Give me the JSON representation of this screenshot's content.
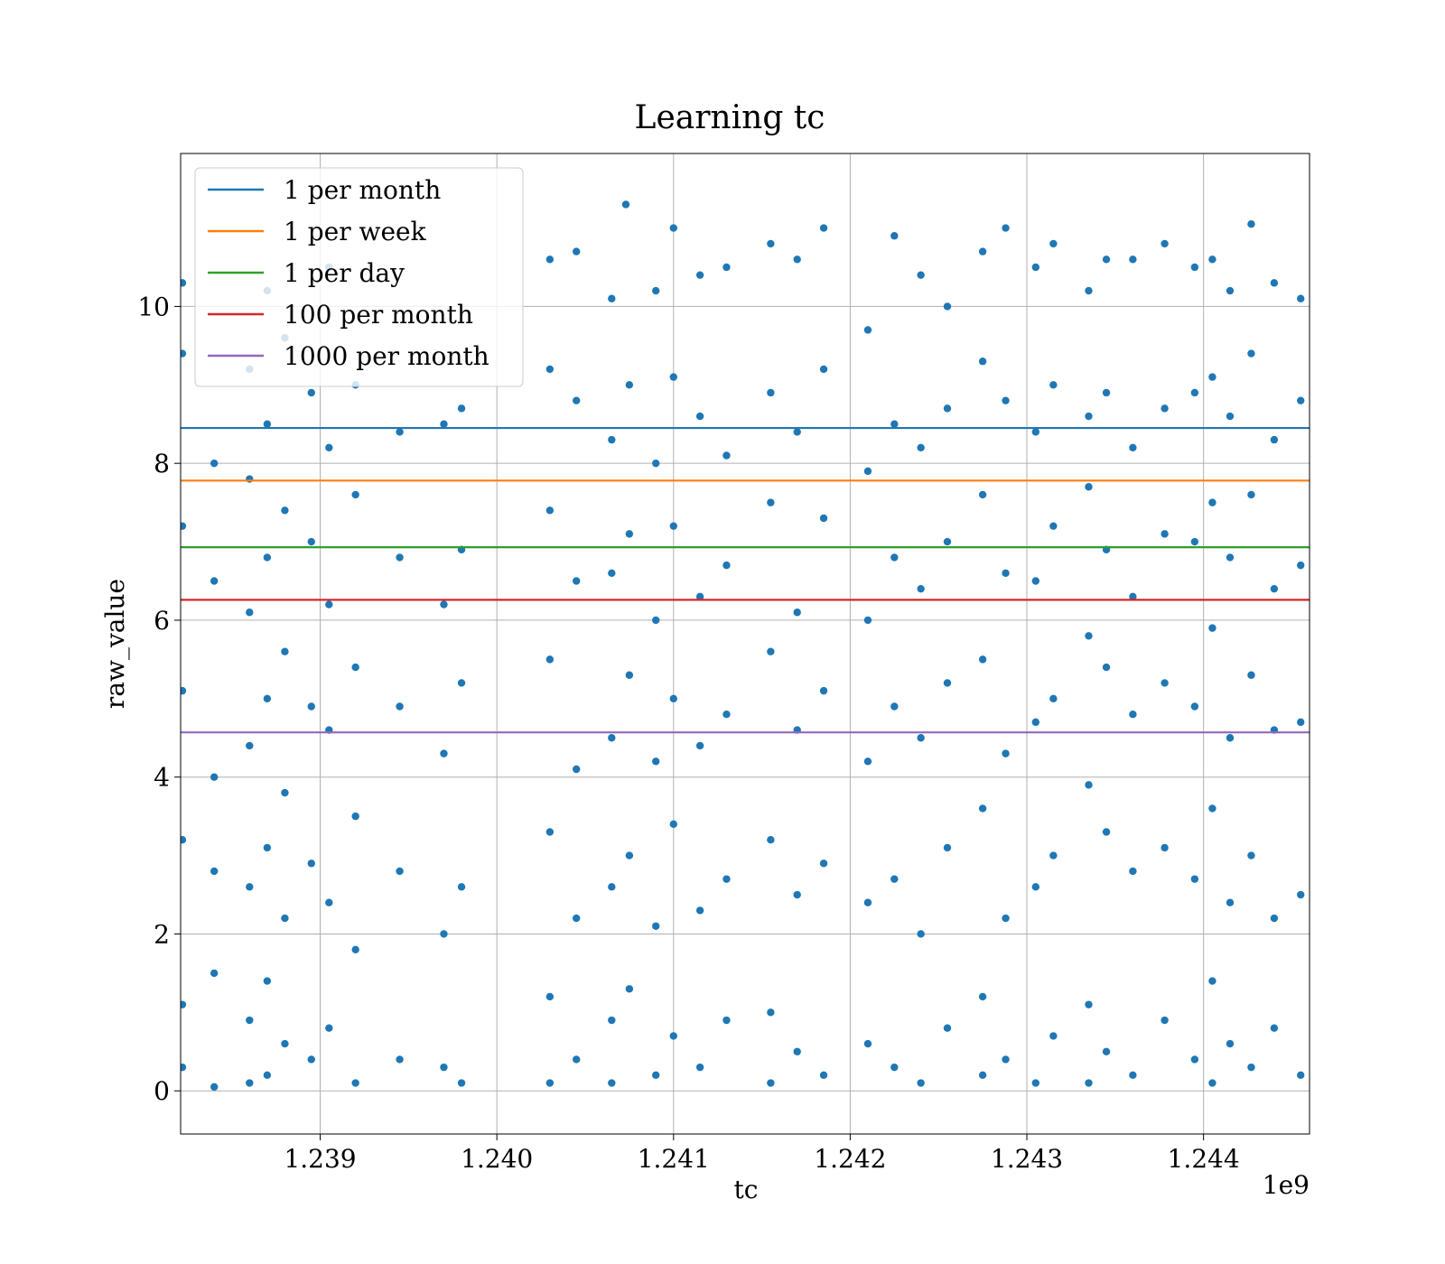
{
  "chart_data": {
    "type": "scatter",
    "title": "Learning tc",
    "xlabel": "tc",
    "ylabel": "raw_value",
    "x_offset_label": "1e9",
    "xlim": [
      1238210000,
      1244600000
    ],
    "ylim": [
      -0.55,
      11.95
    ],
    "xticks": [
      1239000000,
      1240000000,
      1241000000,
      1242000000,
      1243000000,
      1244000000
    ],
    "xtick_labels": [
      "1.239",
      "1.240",
      "1.241",
      "1.242",
      "1.243",
      "1.244"
    ],
    "yticks": [
      0,
      2,
      4,
      6,
      8,
      10
    ],
    "ytick_labels": [
      "0",
      "2",
      "4",
      "6",
      "8",
      "10"
    ],
    "grid": true,
    "legend_position": "upper-left",
    "scatter_color": "#1f77b4",
    "scatter_points": [
      [
        1238220000,
        10.3
      ],
      [
        1238220000,
        9.4
      ],
      [
        1238220000,
        7.2
      ],
      [
        1238220000,
        5.1
      ],
      [
        1238220000,
        3.2
      ],
      [
        1238220000,
        1.1
      ],
      [
        1238220000,
        0.3
      ],
      [
        1238400000,
        8.0
      ],
      [
        1238400000,
        6.5
      ],
      [
        1238400000,
        4.0
      ],
      [
        1238400000,
        2.8
      ],
      [
        1238400000,
        1.5
      ],
      [
        1238400000,
        0.05
      ],
      [
        1238600000,
        9.2
      ],
      [
        1238600000,
        7.8
      ],
      [
        1238600000,
        6.1
      ],
      [
        1238600000,
        4.4
      ],
      [
        1238600000,
        2.6
      ],
      [
        1238600000,
        0.9
      ],
      [
        1238600000,
        0.1
      ],
      [
        1238700000,
        10.2
      ],
      [
        1238700000,
        8.5
      ],
      [
        1238700000,
        6.8
      ],
      [
        1238700000,
        5.0
      ],
      [
        1238700000,
        3.1
      ],
      [
        1238700000,
        1.4
      ],
      [
        1238700000,
        0.2
      ],
      [
        1238800000,
        9.6
      ],
      [
        1238800000,
        7.4
      ],
      [
        1238800000,
        5.6
      ],
      [
        1238800000,
        3.8
      ],
      [
        1238800000,
        2.2
      ],
      [
        1238800000,
        0.6
      ],
      [
        1238950000,
        8.9
      ],
      [
        1238950000,
        7.0
      ],
      [
        1238950000,
        4.9
      ],
      [
        1238950000,
        2.9
      ],
      [
        1238950000,
        0.4
      ],
      [
        1239050000,
        10.5
      ],
      [
        1239050000,
        8.2
      ],
      [
        1239050000,
        6.2
      ],
      [
        1239050000,
        4.6
      ],
      [
        1239050000,
        2.4
      ],
      [
        1239050000,
        0.8
      ],
      [
        1239200000,
        9.0
      ],
      [
        1239200000,
        7.6
      ],
      [
        1239200000,
        5.4
      ],
      [
        1239200000,
        3.5
      ],
      [
        1239200000,
        1.8
      ],
      [
        1239200000,
        0.1
      ],
      [
        1239450000,
        8.4
      ],
      [
        1239450000,
        6.8
      ],
      [
        1239450000,
        4.9
      ],
      [
        1239450000,
        2.8
      ],
      [
        1239450000,
        0.4
      ],
      [
        1239700000,
        8.5
      ],
      [
        1239700000,
        6.2
      ],
      [
        1239700000,
        4.3
      ],
      [
        1239700000,
        2.0
      ],
      [
        1239700000,
        0.3
      ],
      [
        1239800000,
        8.7
      ],
      [
        1239800000,
        6.9
      ],
      [
        1239800000,
        5.2
      ],
      [
        1239800000,
        2.6
      ],
      [
        1239800000,
        0.1
      ],
      [
        1240300000,
        10.6
      ],
      [
        1240300000,
        9.2
      ],
      [
        1240300000,
        7.4
      ],
      [
        1240300000,
        5.5
      ],
      [
        1240300000,
        3.3
      ],
      [
        1240300000,
        1.2
      ],
      [
        1240300000,
        0.1
      ],
      [
        1240450000,
        10.7
      ],
      [
        1240450000,
        8.8
      ],
      [
        1240450000,
        6.5
      ],
      [
        1240450000,
        4.1
      ],
      [
        1240450000,
        2.2
      ],
      [
        1240450000,
        0.4
      ],
      [
        1240650000,
        10.1
      ],
      [
        1240650000,
        8.3
      ],
      [
        1240650000,
        6.6
      ],
      [
        1240650000,
        4.5
      ],
      [
        1240650000,
        2.6
      ],
      [
        1240650000,
        0.9
      ],
      [
        1240650000,
        0.1
      ],
      [
        1240730000,
        11.3
      ],
      [
        1240750000,
        9.0
      ],
      [
        1240750000,
        7.1
      ],
      [
        1240750000,
        5.3
      ],
      [
        1240750000,
        3.0
      ],
      [
        1240750000,
        1.3
      ],
      [
        1240900000,
        10.2
      ],
      [
        1240900000,
        8.0
      ],
      [
        1240900000,
        6.0
      ],
      [
        1240900000,
        4.2
      ],
      [
        1240900000,
        2.1
      ],
      [
        1240900000,
        0.2
      ],
      [
        1241000000,
        11.0
      ],
      [
        1241000000,
        9.1
      ],
      [
        1241000000,
        7.2
      ],
      [
        1241000000,
        5.0
      ],
      [
        1241000000,
        3.4
      ],
      [
        1241000000,
        0.7
      ],
      [
        1241150000,
        10.4
      ],
      [
        1241150000,
        8.6
      ],
      [
        1241150000,
        6.3
      ],
      [
        1241150000,
        4.4
      ],
      [
        1241150000,
        2.3
      ],
      [
        1241150000,
        0.3
      ],
      [
        1241300000,
        10.5
      ],
      [
        1241300000,
        8.1
      ],
      [
        1241300000,
        6.7
      ],
      [
        1241300000,
        4.8
      ],
      [
        1241300000,
        2.7
      ],
      [
        1241300000,
        0.9
      ],
      [
        1241550000,
        10.8
      ],
      [
        1241550000,
        8.9
      ],
      [
        1241550000,
        7.5
      ],
      [
        1241550000,
        5.6
      ],
      [
        1241550000,
        3.2
      ],
      [
        1241550000,
        1.0
      ],
      [
        1241550000,
        0.1
      ],
      [
        1241700000,
        10.6
      ],
      [
        1241700000,
        8.4
      ],
      [
        1241700000,
        6.1
      ],
      [
        1241700000,
        4.6
      ],
      [
        1241700000,
        2.5
      ],
      [
        1241700000,
        0.5
      ],
      [
        1241850000,
        11.0
      ],
      [
        1241850000,
        9.2
      ],
      [
        1241850000,
        7.3
      ],
      [
        1241850000,
        5.1
      ],
      [
        1241850000,
        2.9
      ],
      [
        1241850000,
        0.2
      ],
      [
        1242100000,
        9.7
      ],
      [
        1242100000,
        7.9
      ],
      [
        1242100000,
        6.0
      ],
      [
        1242100000,
        4.2
      ],
      [
        1242100000,
        2.4
      ],
      [
        1242100000,
        0.6
      ],
      [
        1242250000,
        10.9
      ],
      [
        1242250000,
        8.5
      ],
      [
        1242250000,
        6.8
      ],
      [
        1242250000,
        4.9
      ],
      [
        1242250000,
        2.7
      ],
      [
        1242250000,
        0.3
      ],
      [
        1242400000,
        10.4
      ],
      [
        1242400000,
        8.2
      ],
      [
        1242400000,
        6.4
      ],
      [
        1242400000,
        4.5
      ],
      [
        1242400000,
        2.0
      ],
      [
        1242400000,
        0.1
      ],
      [
        1242550000,
        10.0
      ],
      [
        1242550000,
        8.7
      ],
      [
        1242550000,
        7.0
      ],
      [
        1242550000,
        5.2
      ],
      [
        1242550000,
        3.1
      ],
      [
        1242550000,
        0.8
      ],
      [
        1242750000,
        10.7
      ],
      [
        1242750000,
        9.3
      ],
      [
        1242750000,
        7.6
      ],
      [
        1242750000,
        5.5
      ],
      [
        1242750000,
        3.6
      ],
      [
        1242750000,
        1.2
      ],
      [
        1242750000,
        0.2
      ],
      [
        1242880000,
        11.0
      ],
      [
        1242880000,
        8.8
      ],
      [
        1242880000,
        6.6
      ],
      [
        1242880000,
        4.3
      ],
      [
        1242880000,
        2.2
      ],
      [
        1242880000,
        0.4
      ],
      [
        1243050000,
        10.5
      ],
      [
        1243050000,
        8.4
      ],
      [
        1243050000,
        6.5
      ],
      [
        1243050000,
        4.7
      ],
      [
        1243050000,
        2.6
      ],
      [
        1243050000,
        0.1
      ],
      [
        1243150000,
        10.8
      ],
      [
        1243150000,
        9.0
      ],
      [
        1243150000,
        7.2
      ],
      [
        1243150000,
        5.0
      ],
      [
        1243150000,
        3.0
      ],
      [
        1243150000,
        0.7
      ],
      [
        1243350000,
        10.2
      ],
      [
        1243350000,
        8.6
      ],
      [
        1243350000,
        7.7
      ],
      [
        1243350000,
        5.8
      ],
      [
        1243350000,
        3.9
      ],
      [
        1243350000,
        1.1
      ],
      [
        1243350000,
        0.1
      ],
      [
        1243450000,
        10.6
      ],
      [
        1243450000,
        8.9
      ],
      [
        1243450000,
        6.9
      ],
      [
        1243450000,
        5.4
      ],
      [
        1243450000,
        3.3
      ],
      [
        1243450000,
        0.5
      ],
      [
        1243600000,
        10.6
      ],
      [
        1243600000,
        8.2
      ],
      [
        1243600000,
        6.3
      ],
      [
        1243600000,
        4.8
      ],
      [
        1243600000,
        2.8
      ],
      [
        1243600000,
        0.2
      ],
      [
        1243780000,
        10.8
      ],
      [
        1243780000,
        8.7
      ],
      [
        1243780000,
        7.1
      ],
      [
        1243780000,
        5.2
      ],
      [
        1243780000,
        3.1
      ],
      [
        1243780000,
        0.9
      ],
      [
        1243950000,
        10.5
      ],
      [
        1243950000,
        8.9
      ],
      [
        1243950000,
        7.0
      ],
      [
        1243950000,
        4.9
      ],
      [
        1243950000,
        2.7
      ],
      [
        1243950000,
        0.4
      ],
      [
        1244050000,
        10.6
      ],
      [
        1244050000,
        9.1
      ],
      [
        1244050000,
        7.5
      ],
      [
        1244050000,
        5.9
      ],
      [
        1244050000,
        3.6
      ],
      [
        1244050000,
        1.4
      ],
      [
        1244050000,
        0.1
      ],
      [
        1244150000,
        10.2
      ],
      [
        1244150000,
        8.6
      ],
      [
        1244150000,
        6.8
      ],
      [
        1244150000,
        4.5
      ],
      [
        1244150000,
        2.4
      ],
      [
        1244150000,
        0.6
      ],
      [
        1244270000,
        11.05
      ],
      [
        1244270000,
        9.4
      ],
      [
        1244270000,
        7.6
      ],
      [
        1244270000,
        5.3
      ],
      [
        1244270000,
        3.0
      ],
      [
        1244270000,
        0.3
      ],
      [
        1244400000,
        10.3
      ],
      [
        1244400000,
        8.3
      ],
      [
        1244400000,
        6.4
      ],
      [
        1244400000,
        4.6
      ],
      [
        1244400000,
        2.2
      ],
      [
        1244400000,
        0.8
      ],
      [
        1244550000,
        10.1
      ],
      [
        1244550000,
        8.8
      ],
      [
        1244550000,
        6.7
      ],
      [
        1244550000,
        4.7
      ],
      [
        1244550000,
        2.5
      ],
      [
        1244550000,
        0.2
      ]
    ],
    "hlines": [
      {
        "name": "1 per month",
        "y": 8.45,
        "color": "#1f77b4"
      },
      {
        "name": "1 per week",
        "y": 7.78,
        "color": "#ff7f0e"
      },
      {
        "name": "1 per day",
        "y": 6.93,
        "color": "#2ca02c"
      },
      {
        "name": "100 per month",
        "y": 6.26,
        "color": "#d62728"
      },
      {
        "name": "1000 per month",
        "y": 4.57,
        "color": "#9467bd"
      }
    ]
  }
}
